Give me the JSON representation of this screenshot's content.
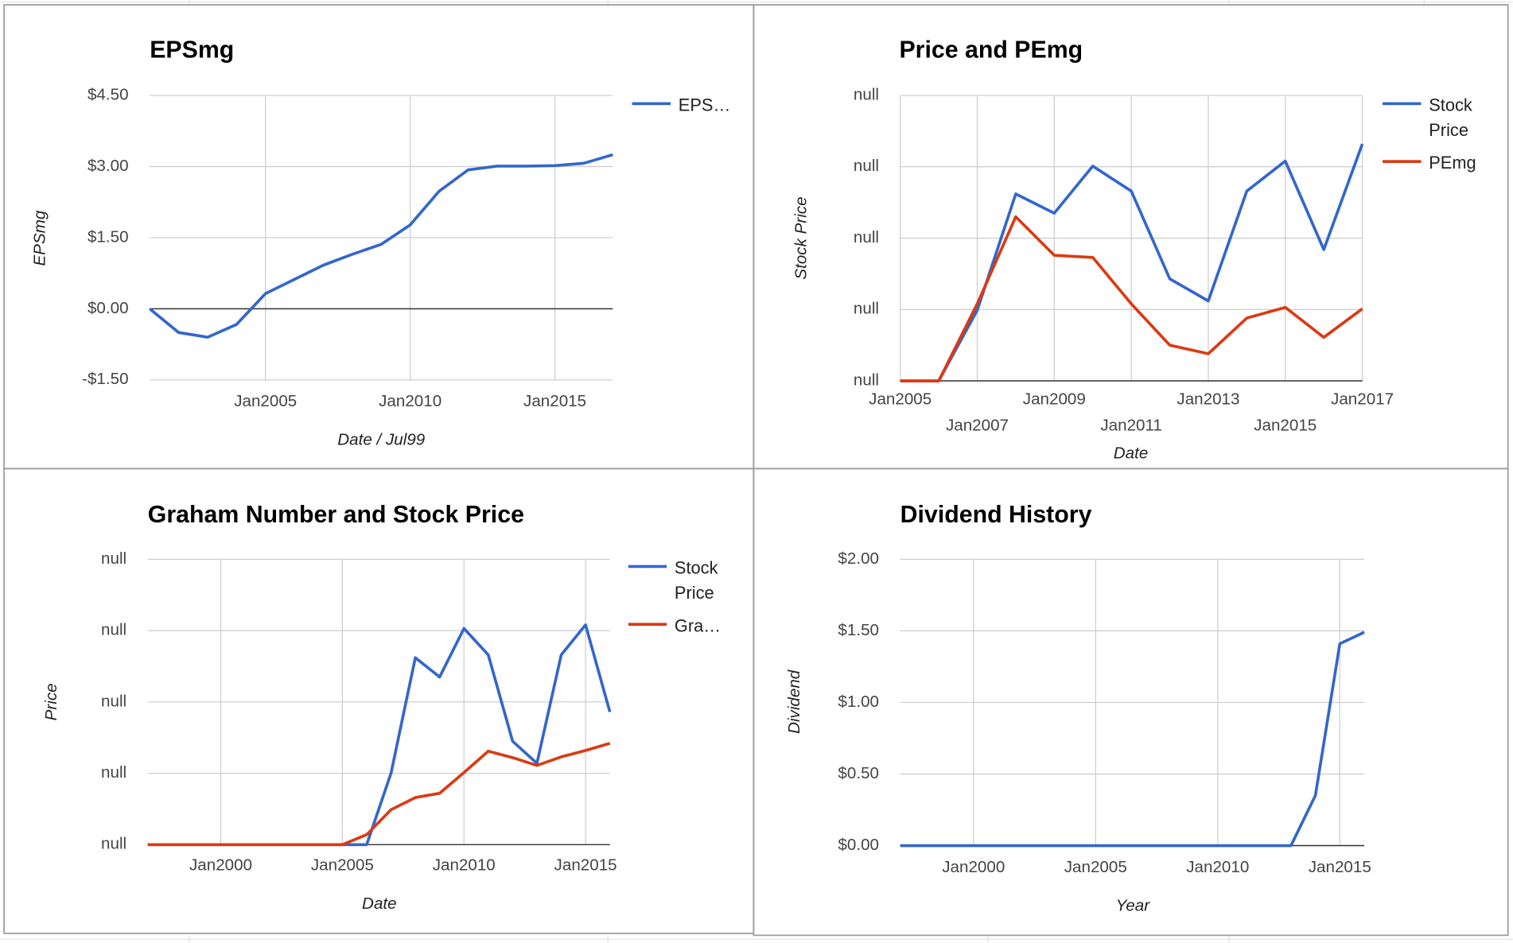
{
  "chart_data": [
    {
      "type": "line",
      "title": "EPSmg",
      "x_label": "Date / Jul99",
      "y_label": "EPSmg",
      "x": [
        2001,
        2002,
        2003,
        2004,
        2005,
        2006,
        2007,
        2008,
        2009,
        2010,
        2011,
        2012,
        2013,
        2014,
        2015,
        2016,
        2017
      ],
      "xlim": [
        2001,
        2017
      ],
      "xticks": [
        {
          "value": 2005,
          "label": "Jan2005"
        },
        {
          "value": 2010,
          "label": "Jan2010"
        },
        {
          "value": 2015,
          "label": "Jan2015"
        }
      ],
      "ylim": [
        -1.5,
        4.5
      ],
      "yticks": [
        {
          "value": -1.5,
          "label": "-$1.50"
        },
        {
          "value": 0,
          "label": "$0.00"
        },
        {
          "value": 1.5,
          "label": "$1.50"
        },
        {
          "value": 3,
          "label": "$3.00"
        },
        {
          "value": 4.5,
          "label": "$4.50"
        }
      ],
      "grid": true,
      "legend": "right",
      "series": [
        {
          "name": "EPS…",
          "color": "#3366cc",
          "values": [
            0,
            -0.5,
            -0.6,
            -0.33,
            0.32,
            0.62,
            0.92,
            1.15,
            1.36,
            1.77,
            2.48,
            2.93,
            3.01,
            3.01,
            3.02,
            3.07,
            3.25
          ]
        }
      ]
    },
    {
      "type": "line",
      "title": "Price and PEmg",
      "x_label": "Date",
      "y_label": "Stock Price",
      "x": [
        2005,
        2006,
        2007,
        2008,
        2009,
        2010,
        2011,
        2012,
        2013,
        2014,
        2015,
        2016,
        2017
      ],
      "xlim": [
        2005,
        2017
      ],
      "xticks": [
        {
          "value": 2005,
          "label": "Jan2005"
        },
        {
          "value": 2007,
          "label": "Jan2007"
        },
        {
          "value": 2009,
          "label": "Jan2009"
        },
        {
          "value": 2011,
          "label": "Jan2011"
        },
        {
          "value": 2013,
          "label": "Jan2013"
        },
        {
          "value": 2015,
          "label": "Jan2015"
        },
        {
          "value": 2017,
          "label": "Jan2017"
        }
      ],
      "ylim": [
        0,
        4
      ],
      "yticks": [
        {
          "value": 0,
          "label": "null"
        },
        {
          "value": 1,
          "label": "null"
        },
        {
          "value": 2,
          "label": "null"
        },
        {
          "value": 3,
          "label": "null"
        },
        {
          "value": 4,
          "label": "null"
        }
      ],
      "grid": true,
      "legend": "right",
      "series": [
        {
          "name": "Stock Price",
          "color": "#3366cc",
          "values": [
            0,
            0,
            0.99,
            2.62,
            2.35,
            3.01,
            2.66,
            1.43,
            1.12,
            2.66,
            3.08,
            1.84,
            3.32
          ]
        },
        {
          "name": "PEmg",
          "color": "#dc3912",
          "values": [
            0,
            0,
            1.08,
            2.3,
            1.76,
            1.73,
            1.08,
            0.5,
            0.38,
            0.88,
            1.03,
            0.61,
            1.01
          ]
        }
      ]
    },
    {
      "type": "line",
      "title": "Graham Number and Stock Price",
      "x_label": "Date",
      "y_label": "Price",
      "x": [
        1997,
        1998,
        1999,
        2000,
        2001,
        2002,
        2003,
        2004,
        2005,
        2006,
        2007,
        2008,
        2009,
        2010,
        2011,
        2012,
        2013,
        2014,
        2015,
        2016
      ],
      "xlim": [
        1997,
        2016
      ],
      "xticks": [
        {
          "value": 2000,
          "label": "Jan2000"
        },
        {
          "value": 2005,
          "label": "Jan2005"
        },
        {
          "value": 2010,
          "label": "Jan2010"
        },
        {
          "value": 2015,
          "label": "Jan2015"
        }
      ],
      "ylim": [
        0,
        4
      ],
      "yticks": [
        {
          "value": 0,
          "label": "null"
        },
        {
          "value": 1,
          "label": "null"
        },
        {
          "value": 2,
          "label": "null"
        },
        {
          "value": 3,
          "label": "null"
        },
        {
          "value": 4,
          "label": "null"
        }
      ],
      "grid": true,
      "legend": "right",
      "series": [
        {
          "name": "Stock Price",
          "color": "#3366cc",
          "values": [
            0,
            0,
            0,
            0,
            0,
            0,
            0,
            0,
            0,
            0,
            1.0,
            2.62,
            2.35,
            3.03,
            2.66,
            1.45,
            1.14,
            2.66,
            3.08,
            1.86
          ]
        },
        {
          "name": "Gra…",
          "color": "#dc3912",
          "values": [
            0,
            0,
            0,
            0,
            0,
            0,
            0,
            0,
            0,
            0.14,
            0.49,
            0.66,
            0.72,
            1.01,
            1.31,
            1.22,
            1.11,
            1.23,
            1.32,
            1.42
          ]
        }
      ]
    },
    {
      "type": "line",
      "title": "Dividend History",
      "x_label": "Year",
      "y_label": "Dividend",
      "x": [
        1997,
        1998,
        1999,
        2000,
        2001,
        2002,
        2003,
        2004,
        2005,
        2006,
        2007,
        2008,
        2009,
        2010,
        2011,
        2012,
        2013,
        2014,
        2015,
        2016
      ],
      "xlim": [
        1997,
        2016
      ],
      "xticks": [
        {
          "value": 2000,
          "label": "Jan2000"
        },
        {
          "value": 2005,
          "label": "Jan2005"
        },
        {
          "value": 2010,
          "label": "Jan2010"
        },
        {
          "value": 2015,
          "label": "Jan2015"
        }
      ],
      "ylim": [
        0,
        2
      ],
      "yticks": [
        {
          "value": 0,
          "label": "$0.00"
        },
        {
          "value": 0.5,
          "label": "$0.50"
        },
        {
          "value": 1,
          "label": "$1.00"
        },
        {
          "value": 1.5,
          "label": "$1.50"
        },
        {
          "value": 2,
          "label": "$2.00"
        }
      ],
      "grid": true,
      "legend": "none",
      "series": [
        {
          "color": "#3366cc",
          "values": [
            0,
            0,
            0,
            0,
            0,
            0,
            0,
            0,
            0,
            0,
            0,
            0,
            0,
            0,
            0,
            0,
            0,
            0.35,
            1.41,
            1.49
          ]
        }
      ]
    }
  ]
}
